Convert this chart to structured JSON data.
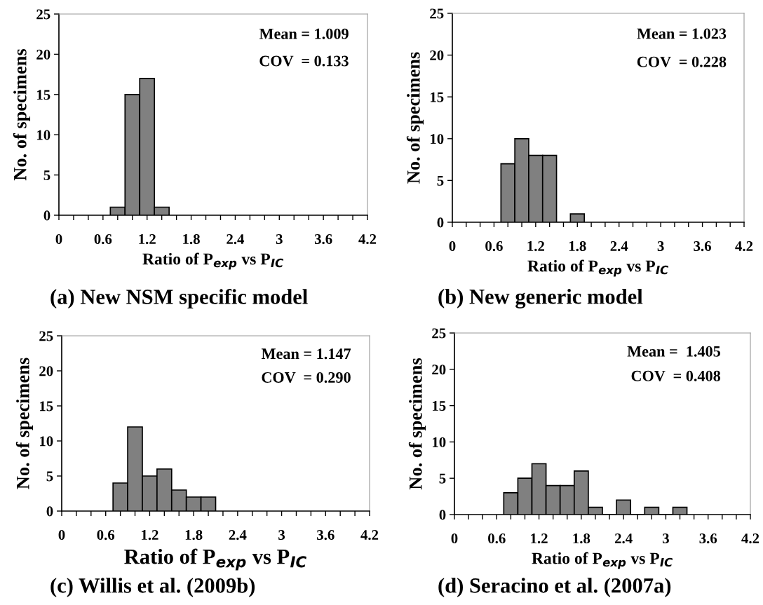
{
  "chart_data": [
    {
      "type": "histogram",
      "title": "(a) New NSM specific model",
      "xlabel": "Ratio of P$_{exp}$ vs P$_{IC}$",
      "ylabel": "No. of specimens",
      "annotations": [
        "Mean = 1.009",
        "COV  = 0.133"
      ],
      "bins": [
        0.7,
        0.9,
        1.1,
        1.3,
        1.5
      ],
      "values": [
        1,
        15,
        17,
        1
      ],
      "color": "#808080",
      "xlim": [
        0,
        4.2
      ],
      "ylim": [
        0,
        25
      ],
      "xticks": [
        0,
        {
          "value": 0.2,
          "label": null
        },
        {
          "value": 0.4,
          "label": null
        },
        0.6,
        {
          "value": 0.8,
          "label": null
        },
        {
          "value": 1.0,
          "label": null
        },
        1.2,
        {
          "value": 1.4,
          "label": null
        },
        {
          "value": 1.6,
          "label": null
        },
        1.8,
        {
          "value": 2.0,
          "label": null
        },
        {
          "value": 2.2,
          "label": null
        },
        2.4,
        {
          "value": 2.6,
          "label": null
        },
        {
          "value": 2.8,
          "label": null
        },
        3,
        {
          "value": 3.2,
          "label": null
        },
        {
          "value": 3.4,
          "label": null
        },
        3.6,
        {
          "value": 3.8,
          "label": null
        },
        {
          "value": 4.0,
          "label": null
        },
        4.2
      ],
      "yticks": [
        0,
        5,
        10,
        15,
        20,
        25
      ],
      "grid": false,
      "legend": false
    },
    {
      "type": "histogram",
      "title": "(b) New generic model",
      "xlabel": "Ratio of P$_{exp}$ vs P$_{IC}$",
      "ylabel": "No. of specimens",
      "annotations": [
        "Mean = 1.023",
        "COV  = 0.228"
      ],
      "bins": [
        0.7,
        0.9,
        1.1,
        1.3,
        1.5,
        1.7,
        1.9
      ],
      "values": [
        7,
        10,
        8,
        8,
        0,
        1
      ],
      "color": "#808080",
      "xlim": [
        0,
        4.2
      ],
      "ylim": [
        0,
        25
      ],
      "xticks": [
        0,
        {
          "value": 0.2,
          "label": null
        },
        {
          "value": 0.4,
          "label": null
        },
        0.6,
        {
          "value": 0.8,
          "label": null
        },
        {
          "value": 1.0,
          "label": null
        },
        1.2,
        {
          "value": 1.4,
          "label": null
        },
        {
          "value": 1.6,
          "label": null
        },
        1.8,
        {
          "value": 2.0,
          "label": null
        },
        {
          "value": 2.2,
          "label": null
        },
        2.4,
        {
          "value": 2.6,
          "label": null
        },
        {
          "value": 2.8,
          "label": null
        },
        3,
        {
          "value": 3.2,
          "label": null
        },
        {
          "value": 3.4,
          "label": null
        },
        3.6,
        {
          "value": 3.8,
          "label": null
        },
        {
          "value": 4.0,
          "label": null
        },
        4.2
      ],
      "yticks": [
        0,
        5,
        10,
        15,
        20,
        25
      ],
      "grid": false,
      "legend": false
    },
    {
      "type": "histogram",
      "title": "(c) Willis et al. (2009b)",
      "xlabel": "Ratio of P$_{exp}$ vs P$_{IC}$",
      "ylabel": "No. of specimens",
      "annotations": [
        "Mean = 1.147",
        "COV  = 0.290"
      ],
      "bins": [
        0.7,
        0.9,
        1.1,
        1.3,
        1.5,
        1.7,
        1.9,
        2.1
      ],
      "values": [
        4,
        12,
        5,
        6,
        3,
        2,
        2
      ],
      "color": "#808080",
      "xlim": [
        0,
        4.2
      ],
      "ylim": [
        0,
        25
      ],
      "xticks": [
        0,
        {
          "value": 0.2,
          "label": null
        },
        {
          "value": 0.4,
          "label": null
        },
        0.6,
        {
          "value": 0.8,
          "label": null
        },
        {
          "value": 1.0,
          "label": null
        },
        1.2,
        {
          "value": 1.4,
          "label": null
        },
        {
          "value": 1.6,
          "label": null
        },
        1.8,
        {
          "value": 2.0,
          "label": null
        },
        {
          "value": 2.2,
          "label": null
        },
        2.4,
        {
          "value": 2.6,
          "label": null
        },
        {
          "value": 2.8,
          "label": null
        },
        3,
        {
          "value": 3.2,
          "label": null
        },
        {
          "value": 3.4,
          "label": null
        },
        3.6,
        {
          "value": 3.8,
          "label": null
        },
        {
          "value": 4.0,
          "label": null
        },
        4.2
      ],
      "yticks": [
        0,
        5,
        10,
        15,
        20,
        25
      ],
      "grid": false,
      "legend": false
    },
    {
      "type": "histogram",
      "title": "(d) Seracino et al. (2007a)",
      "xlabel": "Ratio of P$_{exp}$ vs P$_{IC}$",
      "ylabel": "No. of specimens",
      "annotations": [
        "Mean =  1.405",
        "COV  = 0.408"
      ],
      "bins": [
        0.7,
        0.9,
        1.1,
        1.3,
        1.5,
        1.7,
        1.9,
        2.1,
        2.3,
        2.5,
        2.7,
        2.9,
        3.1,
        3.3
      ],
      "values": [
        3,
        5,
        7,
        4,
        4,
        6,
        1,
        0,
        2,
        0,
        1,
        0,
        1
      ],
      "color": "#808080",
      "xlim": [
        0,
        4.2
      ],
      "ylim": [
        0,
        25
      ],
      "xticks": [
        0,
        {
          "value": 0.2,
          "label": null
        },
        {
          "value": 0.4,
          "label": null
        },
        0.6,
        {
          "value": 0.8,
          "label": null
        },
        {
          "value": 1.0,
          "label": null
        },
        1.2,
        {
          "value": 1.4,
          "label": null
        },
        {
          "value": 1.6,
          "label": null
        },
        1.8,
        {
          "value": 2.0,
          "label": null
        },
        {
          "value": 2.2,
          "label": null
        },
        2.4,
        {
          "value": 2.6,
          "label": null
        },
        {
          "value": 2.8,
          "label": null
        },
        3,
        {
          "value": 3.2,
          "label": null
        },
        {
          "value": 3.4,
          "label": null
        },
        3.6,
        {
          "value": 3.8,
          "label": null
        },
        {
          "value": 4.0,
          "label": null
        },
        4.2
      ],
      "yticks": [
        0,
        5,
        10,
        15,
        20,
        25
      ],
      "grid": false,
      "legend": false
    }
  ]
}
